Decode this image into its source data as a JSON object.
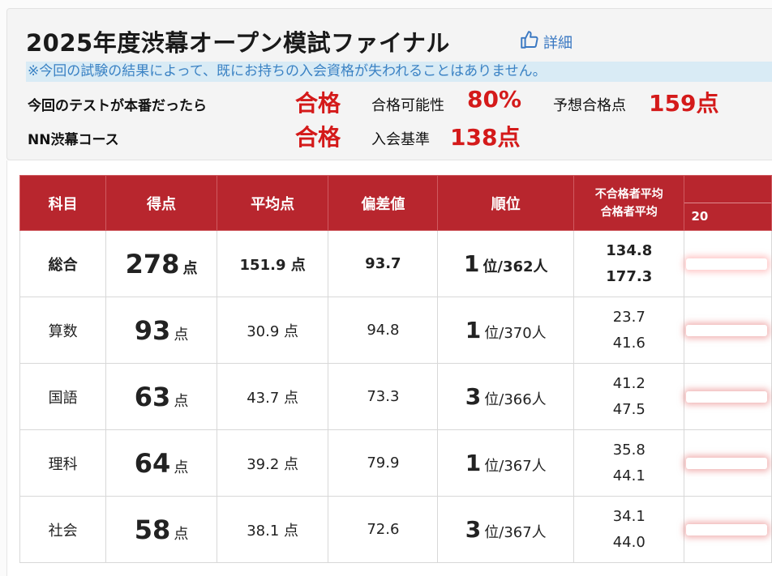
{
  "header": {
    "title": "2025年度渋幕オープン模試ファイナル",
    "detail_label": "詳細",
    "notice": "※今回の試験の結果によって、既にお持ちの入会資格が失われることはありません。",
    "row1": {
      "label": "今回のテストが本番だったら",
      "result": "合格",
      "probability_label": "合格可能性",
      "probability_value": "80%",
      "expected_label": "予想合格点",
      "expected_value": "159点"
    },
    "row2": {
      "label": "NN渋幕コース",
      "result": "合格",
      "criteria_label": "入会基準",
      "criteria_value": "138点"
    }
  },
  "table": {
    "headers": {
      "subject": "科目",
      "score": "得点",
      "average": "平均点",
      "deviation": "偏差値",
      "rank": "順位",
      "fail_avg": "不合格者平均",
      "pass_avg": "合格者平均",
      "range_start": "20"
    },
    "score_unit": "点",
    "rank_unit": "位",
    "rows": [
      {
        "subject": "総合",
        "score": "278",
        "average": "151.9 点",
        "deviation": "93.7",
        "rank": "1",
        "rank_total": "/362人",
        "fail_avg": "134.8",
        "pass_avg": "177.3"
      },
      {
        "subject": "算数",
        "score": "93",
        "average": "30.9 点",
        "deviation": "94.8",
        "rank": "1",
        "rank_total": "/370人",
        "fail_avg": "23.7",
        "pass_avg": "41.6"
      },
      {
        "subject": "国語",
        "score": "63",
        "average": "43.7 点",
        "deviation": "73.3",
        "rank": "3",
        "rank_total": "/366人",
        "fail_avg": "41.2",
        "pass_avg": "47.5"
      },
      {
        "subject": "理科",
        "score": "64",
        "average": "39.2 点",
        "deviation": "79.9",
        "rank": "1",
        "rank_total": "/367人",
        "fail_avg": "35.8",
        "pass_avg": "44.1"
      },
      {
        "subject": "社会",
        "score": "58",
        "average": "38.1 点",
        "deviation": "72.6",
        "rank": "3",
        "rank_total": "/367人",
        "fail_avg": "34.1",
        "pass_avg": "44.0"
      }
    ]
  },
  "colors": {
    "header_red": "#b8262e",
    "total_row_bg": "#3b3b2c",
    "accent_red": "#d41a1a",
    "notice_bg": "#d9ebf5",
    "link_blue": "#3a78c2"
  },
  "icons": {
    "detail_icon": "thumbs-up-icon"
  }
}
